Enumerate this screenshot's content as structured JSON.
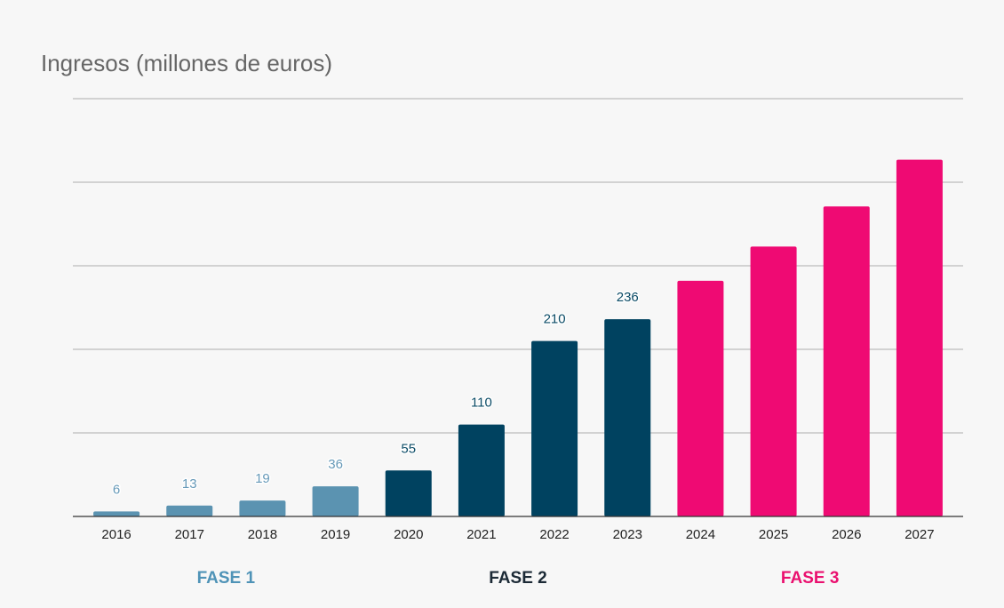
{
  "chart_data": {
    "type": "bar",
    "title": "Ingresos (millones de euros)",
    "categories": [
      "2016",
      "2017",
      "2018",
      "2019",
      "2020",
      "2021",
      "2022",
      "2023",
      "2024",
      "2025",
      "2026",
      "2027"
    ],
    "values": [
      6,
      13,
      19,
      36,
      55,
      110,
      210,
      236,
      282,
      323,
      371,
      427
    ],
    "labeled": [
      true,
      true,
      true,
      true,
      true,
      true,
      true,
      true,
      false,
      false,
      false,
      false
    ],
    "phase_of_bar": [
      0,
      0,
      0,
      0,
      1,
      1,
      1,
      1,
      2,
      2,
      2,
      2
    ],
    "ylim": [
      0,
      500
    ],
    "gridlines": [
      100,
      200,
      300,
      400,
      500
    ],
    "grid": true,
    "phases": [
      {
        "label": "FASE 1",
        "color": "#5b93b1",
        "label_color": "#4f93b7",
        "text_color": "#6699b8"
      },
      {
        "label": "FASE 2",
        "color": "#004260",
        "label_color": "#1c2a36",
        "text_color": "#0b4b66"
      },
      {
        "label": "FASE 3",
        "color": "#ef0a73",
        "label_color": "#ea106f",
        "text_color": "#ef0a73"
      }
    ]
  }
}
